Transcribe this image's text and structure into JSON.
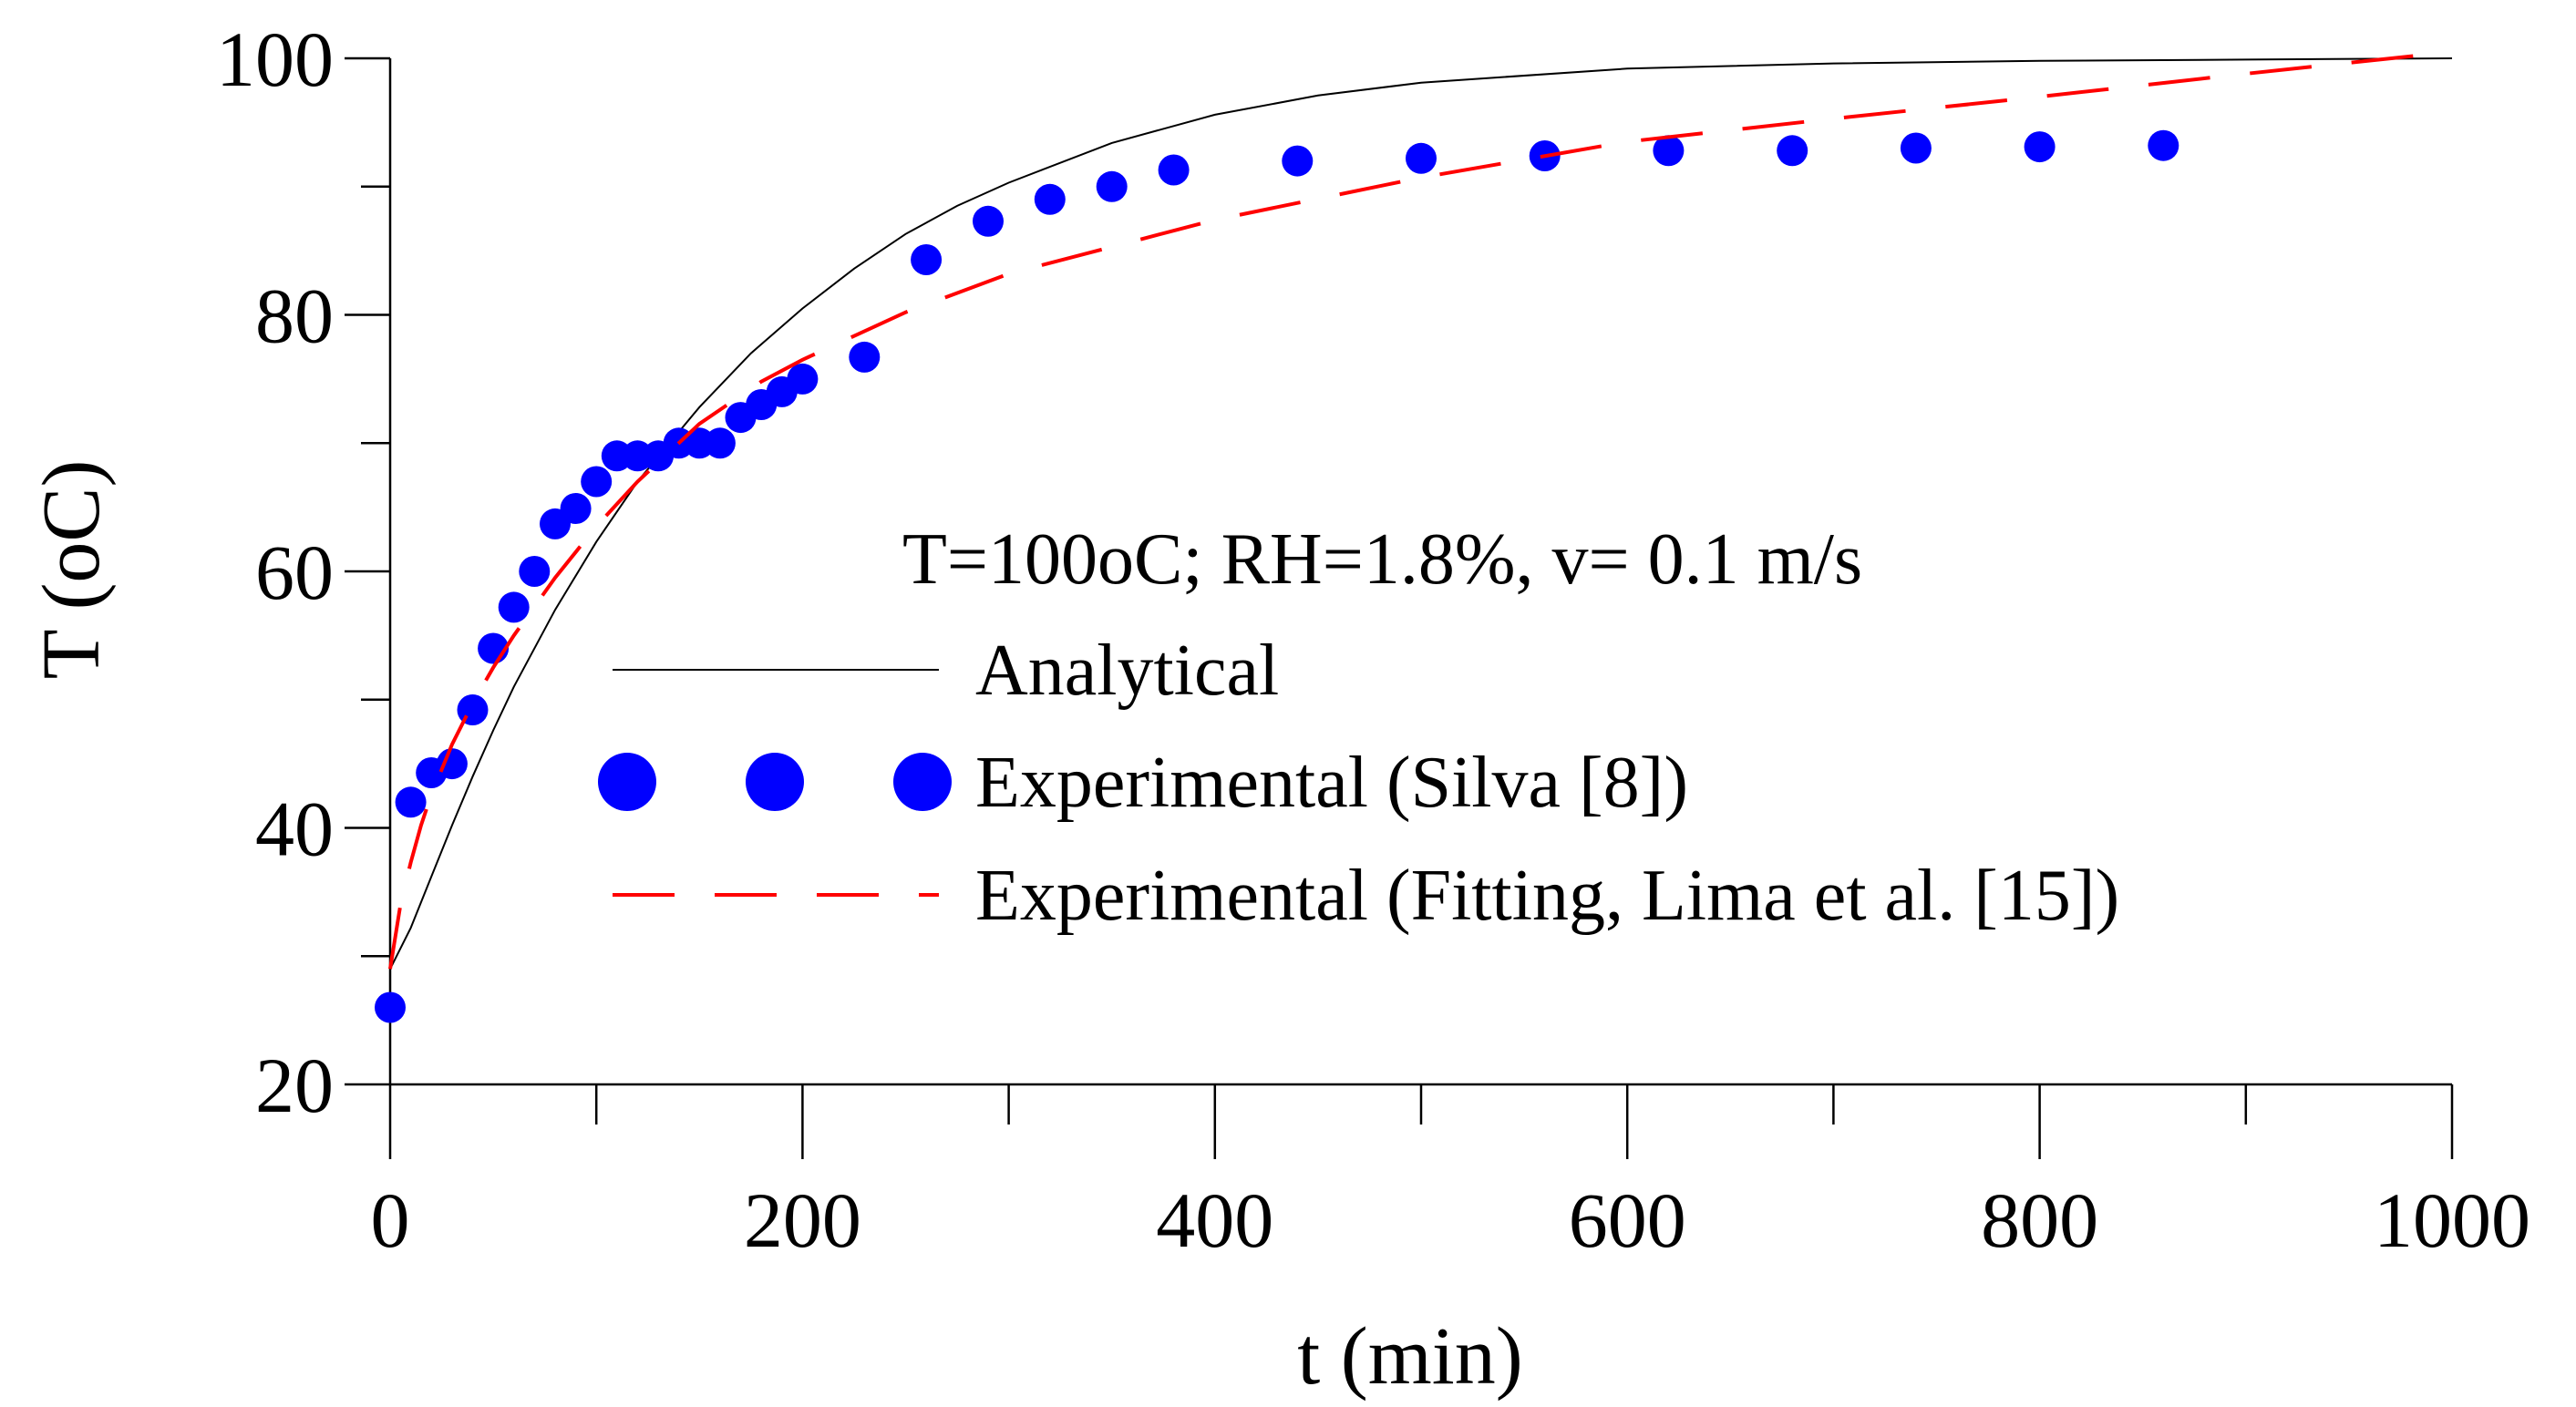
{
  "chart_data": {
    "type": "line",
    "xlabel": "t (min)",
    "ylabel": "T (oC)",
    "xlim": [
      0,
      1000
    ],
    "ylim": [
      20,
      100
    ],
    "xticks": [
      0,
      200,
      400,
      600,
      800,
      1000
    ],
    "yticks": [
      20,
      40,
      60,
      80,
      100
    ],
    "xtick_labels": [
      "0",
      "200",
      "400",
      "600",
      "800",
      "1000"
    ],
    "ytick_labels": [
      "20",
      "40",
      "60",
      "80",
      "100"
    ],
    "grid": false,
    "annotation": "T=100oC; RH=1.8%, v= 0.1 m/s",
    "legend_position": "center-right",
    "series": [
      {
        "name": "Analytical",
        "style": "line",
        "color": "#000000",
        "x": [
          0,
          10,
          20,
          30,
          40,
          50,
          60,
          80,
          100,
          120,
          150,
          175,
          200,
          225,
          250,
          275,
          300,
          350,
          400,
          450,
          500,
          600,
          700,
          800,
          900,
          1000
        ],
        "y": [
          29,
          32.2,
          36.2,
          40.2,
          44.0,
          47.6,
          51.0,
          57.0,
          62.3,
          67.0,
          72.8,
          77.0,
          80.5,
          83.6,
          86.3,
          88.5,
          90.3,
          93.4,
          95.6,
          97.1,
          98.1,
          99.2,
          99.6,
          99.8,
          99.9,
          100.0
        ]
      },
      {
        "name": "Experimental (Silva [8])",
        "style": "markers",
        "color": "#0000ff",
        "x": [
          0,
          10,
          20,
          30,
          40,
          50,
          60,
          70,
          80,
          90,
          100,
          110,
          120,
          130,
          140,
          150,
          160,
          170,
          180,
          190,
          200,
          230,
          260,
          290,
          320,
          350,
          380,
          440,
          500,
          560,
          620,
          680,
          740,
          800,
          860
        ],
        "y": [
          26,
          42,
          44.3,
          45,
          49.2,
          54,
          57.2,
          60,
          63.7,
          64.9,
          67,
          69,
          69,
          69,
          70,
          70,
          70,
          72,
          73,
          74,
          75,
          76.7,
          84.3,
          87.3,
          89,
          90,
          91.3,
          92,
          92.2,
          92.4,
          92.8,
          92.8,
          93,
          93.1,
          93.2
        ]
      },
      {
        "name": "Experimental (Fitting, Lima et al. [15])",
        "style": "dashed",
        "color": "#ff0000",
        "x": [
          0,
          5,
          10,
          15,
          20,
          30,
          40,
          50,
          60,
          80,
          100,
          120,
          150,
          180,
          200,
          250,
          300,
          350,
          400,
          500,
          600,
          700,
          800,
          900,
          1000
        ],
        "y": [
          29,
          34,
          37.3,
          40.2,
          42.6,
          46.5,
          49.7,
          52.5,
          55,
          59.5,
          63.5,
          67,
          71.5,
          74.8,
          76.5,
          80.2,
          83.2,
          85.3,
          87.4,
          90.7,
          93.5,
          95.3,
          97.0,
          98.8,
          100.5
        ]
      }
    ]
  }
}
